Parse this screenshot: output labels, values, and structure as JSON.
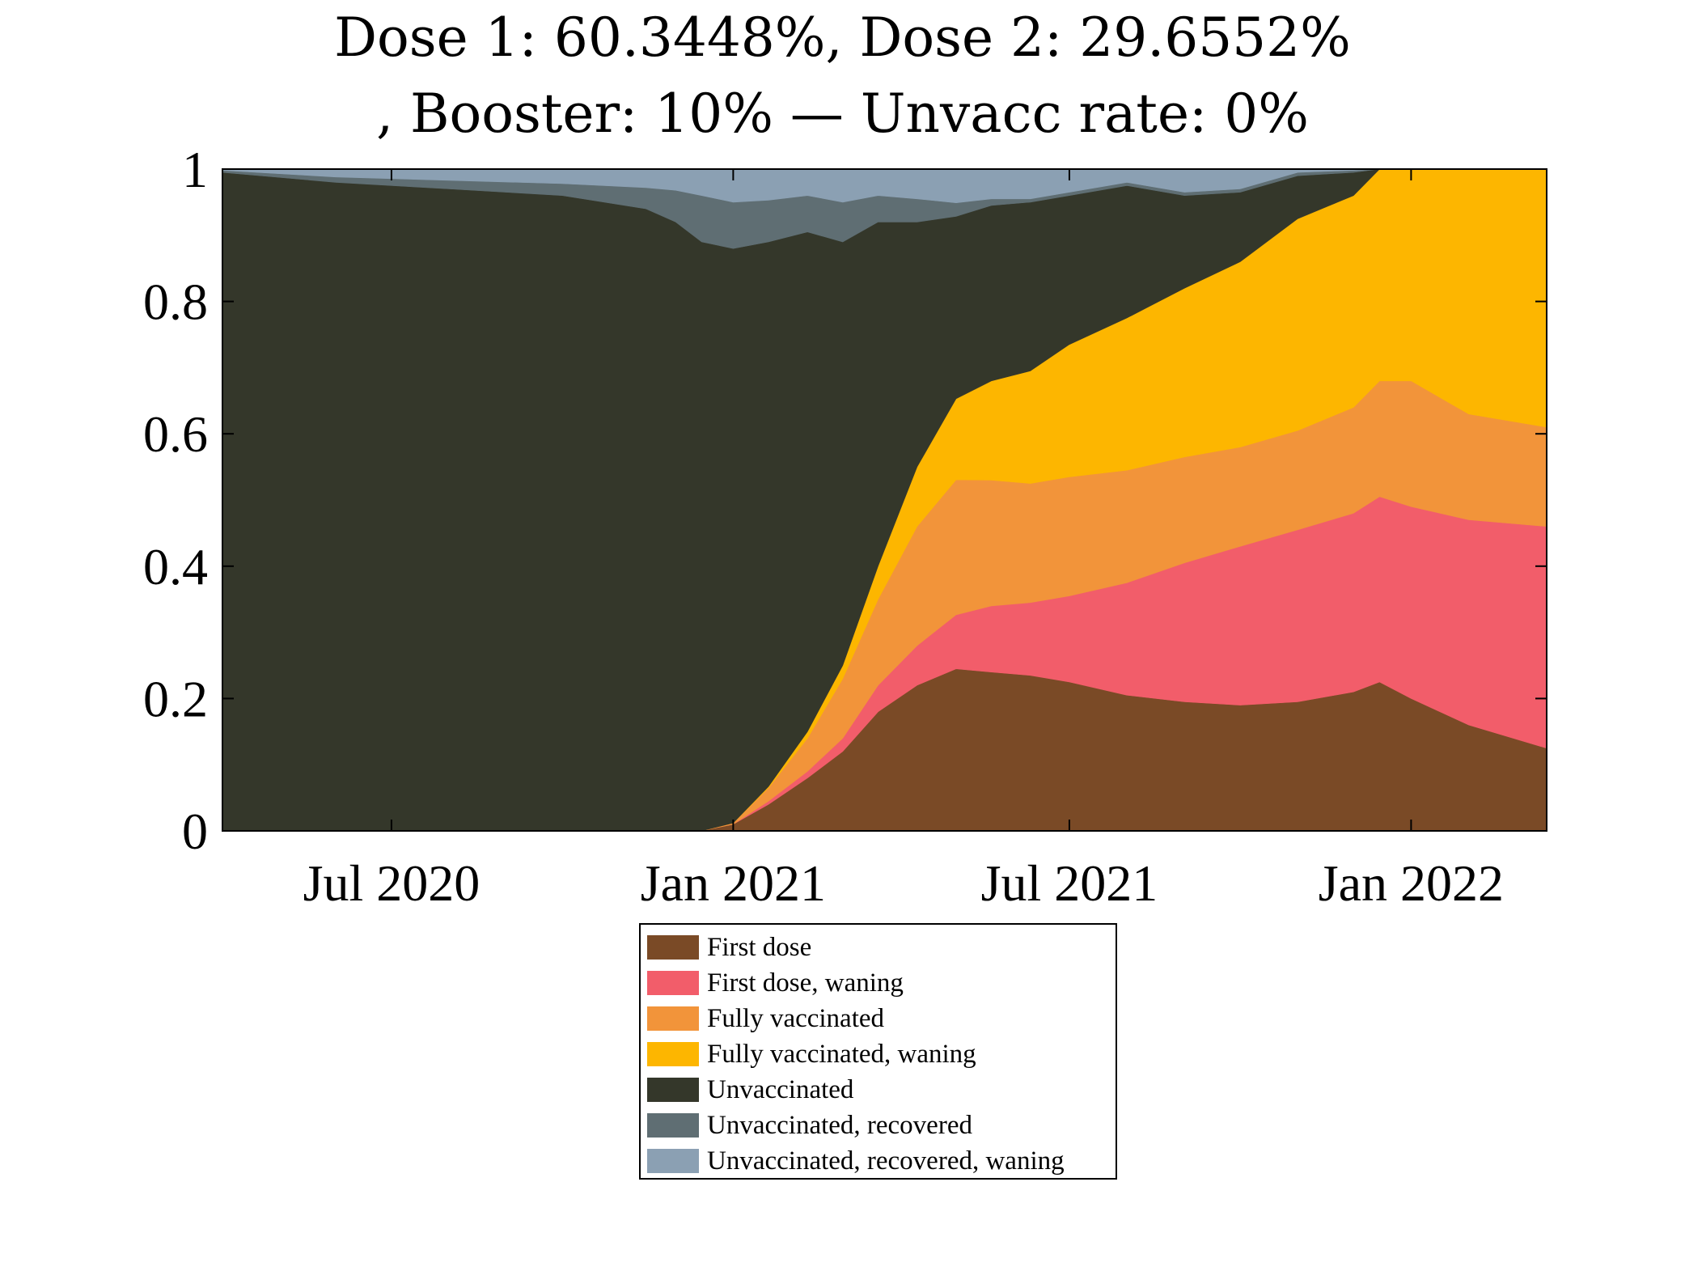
{
  "chart_data": {
    "type": "area",
    "stacked": true,
    "title_lines": [
      "Dose 1: 60.3448%, Dose 2: 29.6552%",
      ", Booster: 10% — Unvacc rate: 0%"
    ],
    "xlabel": "",
    "ylabel": "",
    "ylim": [
      0,
      1
    ],
    "yticks": [
      0,
      0.2,
      0.4,
      0.6,
      0.8,
      1
    ],
    "ytick_labels": [
      "0",
      "0.2",
      "0.4",
      "0.6",
      "0.8",
      "1"
    ],
    "xlim": [
      "2020-04-01",
      "2022-03-15"
    ],
    "xticks": [
      "2020-07-01",
      "2021-01-01",
      "2021-07-01",
      "2022-01-01"
    ],
    "xtick_labels": [
      "Jul 2020",
      "Jan 2021",
      "Jul 2021",
      "Jan 2022"
    ],
    "grid": false,
    "legend_position": "below",
    "x": [
      "2020-04-01",
      "2020-06-01",
      "2020-08-01",
      "2020-10-01",
      "2020-11-15",
      "2020-12-01",
      "2020-12-15",
      "2021-01-01",
      "2021-01-20",
      "2021-02-10",
      "2021-03-01",
      "2021-03-20",
      "2021-04-10",
      "2021-05-01",
      "2021-05-20",
      "2021-06-10",
      "2021-07-01",
      "2021-08-01",
      "2021-09-01",
      "2021-10-01",
      "2021-11-01",
      "2021-12-01",
      "2021-12-15",
      "2022-01-01",
      "2022-02-01",
      "2022-03-15"
    ],
    "series": [
      {
        "name": "First dose",
        "color": "#7A4A26",
        "values": [
          0,
          0,
          0,
          0,
          0,
          0,
          0,
          0.01,
          0.04,
          0.08,
          0.12,
          0.18,
          0.22,
          0.24,
          0.24,
          0.235,
          0.225,
          0.205,
          0.195,
          0.19,
          0.195,
          0.21,
          0.225,
          0.2,
          0.16,
          0.125
        ]
      },
      {
        "name": "First dose, waning",
        "color": "#F25D6A",
        "values": [
          0,
          0,
          0,
          0,
          0,
          0,
          0,
          0,
          0.005,
          0.01,
          0.02,
          0.04,
          0.06,
          0.08,
          0.1,
          0.11,
          0.13,
          0.17,
          0.21,
          0.24,
          0.26,
          0.27,
          0.28,
          0.29,
          0.31,
          0.335
        ]
      },
      {
        "name": "Fully vaccinated",
        "color": "#F2943A",
        "values": [
          0,
          0,
          0,
          0,
          0,
          0,
          0,
          0.002,
          0.02,
          0.05,
          0.09,
          0.13,
          0.18,
          0.2,
          0.19,
          0.18,
          0.18,
          0.17,
          0.16,
          0.15,
          0.15,
          0.16,
          0.175,
          0.19,
          0.16,
          0.15
        ]
      },
      {
        "name": "Fully vaccinated, waning",
        "color": "#FDB600",
        "values": [
          0,
          0,
          0,
          0,
          0,
          0,
          0,
          0,
          0.002,
          0.01,
          0.02,
          0.05,
          0.09,
          0.12,
          0.15,
          0.17,
          0.2,
          0.23,
          0.255,
          0.28,
          0.32,
          0.32,
          0.32,
          0.32,
          0.37,
          0.39
        ]
      },
      {
        "name": "Unvaccinated",
        "color": "#34372A",
        "values": [
          0.995,
          0.98,
          0.97,
          0.96,
          0.94,
          0.92,
          0.89,
          0.868,
          0.823,
          0.755,
          0.64,
          0.52,
          0.37,
          0.27,
          0.265,
          0.255,
          0.225,
          0.2,
          0.14,
          0.105,
          0.065,
          0.035,
          0,
          0,
          0,
          0
        ]
      },
      {
        "name": "Unvaccinated, recovered",
        "color": "#5F6E73",
        "values": [
          0.003,
          0.008,
          0.013,
          0.018,
          0.032,
          0.048,
          0.07,
          0.07,
          0.063,
          0.055,
          0.06,
          0.04,
          0.035,
          0.02,
          0.01,
          0.005,
          0.005,
          0.005,
          0.005,
          0.005,
          0.005,
          0.003,
          0,
          0,
          0,
          0
        ]
      },
      {
        "name": "Unvaccinated, recovered, waning",
        "color": "#8BA0B3",
        "values": [
          0.002,
          0.012,
          0.017,
          0.022,
          0.028,
          0.032,
          0.04,
          0.05,
          0.047,
          0.04,
          0.05,
          0.04,
          0.045,
          0.05,
          0.045,
          0.045,
          0.035,
          0.02,
          0.035,
          0.03,
          0.005,
          0.002,
          0,
          0,
          0,
          0
        ]
      }
    ]
  }
}
